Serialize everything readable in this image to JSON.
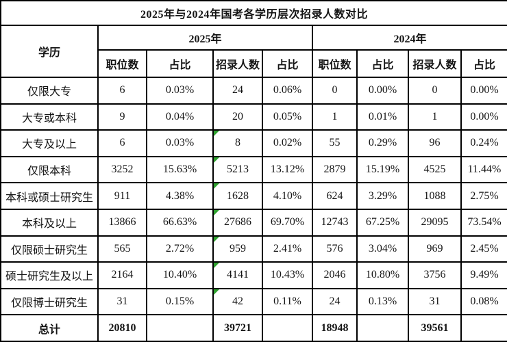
{
  "title": "2025年与2024年国考各学历层次招录人数对比",
  "table": {
    "corner_header": "学历",
    "year_groups": [
      "2025年",
      "2024年"
    ],
    "sub_headers": [
      "职位数",
      "占比",
      "招录人数",
      "占比"
    ],
    "rows": [
      {
        "label": "仅限大专",
        "values": [
          "6",
          "0.03%",
          "24",
          "0.06%",
          "0",
          "0.00%",
          "0",
          "0.00%"
        ],
        "flag_cells": []
      },
      {
        "label": "大专或本科",
        "values": [
          "9",
          "0.04%",
          "20",
          "0.05%",
          "1",
          "0.01%",
          "1",
          "0.00%"
        ],
        "flag_cells": []
      },
      {
        "label": "大专及以上",
        "values": [
          "6",
          "0.03%",
          "8",
          "0.02%",
          "55",
          "0.29%",
          "96",
          "0.24%"
        ],
        "flag_cells": [
          2
        ]
      },
      {
        "label": "仅限本科",
        "values": [
          "3252",
          "15.63%",
          "5213",
          "13.12%",
          "2879",
          "15.19%",
          "4525",
          "11.44%"
        ],
        "flag_cells": [
          2
        ]
      },
      {
        "label": "本科或硕士研究生",
        "values": [
          "911",
          "4.38%",
          "1628",
          "4.10%",
          "624",
          "3.29%",
          "1088",
          "2.75%"
        ],
        "flag_cells": [
          2
        ]
      },
      {
        "label": "本科及以上",
        "values": [
          "13866",
          "66.63%",
          "27686",
          "69.70%",
          "12743",
          "67.25%",
          "29095",
          "73.54%"
        ],
        "flag_cells": [
          2
        ]
      },
      {
        "label": "仅限硕士研究生",
        "values": [
          "565",
          "2.72%",
          "959",
          "2.41%",
          "576",
          "3.04%",
          "969",
          "2.45%"
        ],
        "flag_cells": [
          2
        ]
      },
      {
        "label": "硕士研究生及以上",
        "values": [
          "2164",
          "10.40%",
          "4141",
          "10.43%",
          "2046",
          "10.80%",
          "3756",
          "9.49%"
        ],
        "flag_cells": [
          2
        ]
      },
      {
        "label": "仅限博士研究生",
        "values": [
          "31",
          "0.15%",
          "42",
          "0.11%",
          "24",
          "0.13%",
          "31",
          "0.08%"
        ],
        "flag_cells": [
          2
        ]
      },
      {
        "label": "总计",
        "values": [
          "20810",
          "",
          "39721",
          "",
          "18948",
          "",
          "39561",
          ""
        ],
        "flag_cells": [],
        "is_total": true
      }
    ]
  },
  "colors": {
    "border": "#000000",
    "text": "#141414",
    "background": "#ffffff",
    "flag_triangle_green": "#2fa12f"
  }
}
